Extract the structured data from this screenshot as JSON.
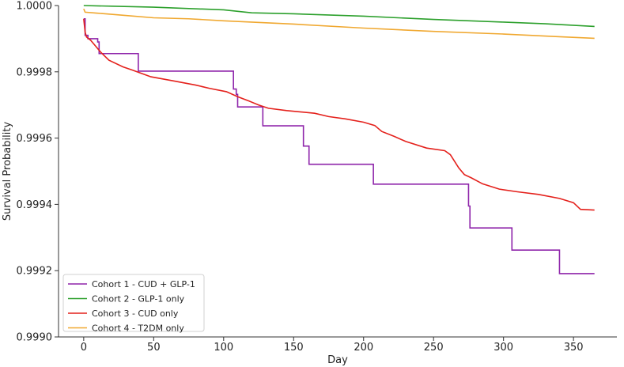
{
  "chart_data": {
    "type": "line",
    "step": true,
    "title": "",
    "xlabel": "Day",
    "ylabel": "Survival Probability",
    "xlim": [
      -18,
      381
    ],
    "ylim": [
      0.999,
      1.0
    ],
    "xticks": [
      0,
      50,
      100,
      150,
      200,
      250,
      300,
      350
    ],
    "yticks": [
      0.999,
      0.9992,
      0.9994,
      0.9996,
      0.9998,
      1.0
    ],
    "ytick_labels": [
      "0.9990",
      "0.9992",
      "0.9994",
      "0.9996",
      "0.9998",
      "1.0000"
    ],
    "grid": false,
    "legend_position": "bottom-left",
    "series": [
      {
        "name": "Cohort 1 - CUD + GLP-1",
        "color": "#8e24aa",
        "points": [
          [
            0,
            0.99996
          ],
          [
            1,
            0.99996
          ],
          [
            1,
            0.99991
          ],
          [
            3,
            0.99991
          ],
          [
            3,
            0.9999
          ],
          [
            10,
            0.9999
          ],
          [
            10,
            0.99989
          ],
          [
            11,
            0.99989
          ],
          [
            11,
            0.999855
          ],
          [
            39,
            0.999855
          ],
          [
            39,
            0.999802
          ],
          [
            107,
            0.999802
          ],
          [
            107,
            0.999748
          ],
          [
            109,
            0.999748
          ],
          [
            109,
            0.999732
          ],
          [
            110,
            0.999732
          ],
          [
            110,
            0.999694
          ],
          [
            128,
            0.999694
          ],
          [
            128,
            0.999637
          ],
          [
            157,
            0.999637
          ],
          [
            157,
            0.999576
          ],
          [
            161,
            0.999576
          ],
          [
            161,
            0.999521
          ],
          [
            207,
            0.999521
          ],
          [
            207,
            0.999461
          ],
          [
            275,
            0.999461
          ],
          [
            275,
            0.999395
          ],
          [
            276,
            0.999395
          ],
          [
            276,
            0.999329
          ],
          [
            306,
            0.999329
          ],
          [
            306,
            0.999262
          ],
          [
            340,
            0.999262
          ],
          [
            340,
            0.999191
          ],
          [
            365,
            0.999191
          ]
        ]
      },
      {
        "name": "Cohort 2 - GLP-1 only",
        "color": "#2ca02c",
        "points": [
          [
            0,
            1.0
          ],
          [
            20,
            0.999998
          ],
          [
            50,
            0.999995
          ],
          [
            100,
            0.999987
          ],
          [
            120,
            0.999978
          ],
          [
            150,
            0.999975
          ],
          [
            200,
            0.999968
          ],
          [
            250,
            0.999958
          ],
          [
            300,
            0.99995
          ],
          [
            330,
            0.999945
          ],
          [
            365,
            0.999937
          ]
        ]
      },
      {
        "name": "Cohort 3 - CUD only",
        "color": "#e4211c",
        "points": [
          [
            0,
            0.99996
          ],
          [
            1,
            0.99992
          ],
          [
            2,
            0.999905
          ],
          [
            5,
            0.999895
          ],
          [
            8,
            0.99988
          ],
          [
            12,
            0.99986
          ],
          [
            18,
            0.999835
          ],
          [
            28,
            0.999815
          ],
          [
            35,
            0.999805
          ],
          [
            48,
            0.999785
          ],
          [
            65,
            0.999772
          ],
          [
            80,
            0.99976
          ],
          [
            90,
            0.99975
          ],
          [
            102,
            0.99974
          ],
          [
            110,
            0.999725
          ],
          [
            118,
            0.999712
          ],
          [
            125,
            0.9997
          ],
          [
            132,
            0.99969
          ],
          [
            145,
            0.999683
          ],
          [
            165,
            0.999675
          ],
          [
            175,
            0.999665
          ],
          [
            187,
            0.999658
          ],
          [
            200,
            0.999648
          ],
          [
            208,
            0.999638
          ],
          [
            213,
            0.99962
          ],
          [
            222,
            0.999605
          ],
          [
            230,
            0.99959
          ],
          [
            245,
            0.99957
          ],
          [
            258,
            0.999562
          ],
          [
            262,
            0.99955
          ],
          [
            265,
            0.99953
          ],
          [
            268,
            0.99951
          ],
          [
            272,
            0.99949
          ],
          [
            277,
            0.99948
          ],
          [
            285,
            0.999462
          ],
          [
            297,
            0.999446
          ],
          [
            310,
            0.999438
          ],
          [
            325,
            0.99943
          ],
          [
            340,
            0.999418
          ],
          [
            350,
            0.999405
          ],
          [
            355,
            0.999385
          ],
          [
            365,
            0.999383
          ]
        ]
      },
      {
        "name": "Cohort 4 - T2DM only",
        "color": "#f0a830",
        "points": [
          [
            0,
            0.99999
          ],
          [
            1,
            0.99998
          ],
          [
            10,
            0.999977
          ],
          [
            30,
            0.99997
          ],
          [
            50,
            0.999963
          ],
          [
            75,
            0.99996
          ],
          [
            100,
            0.999954
          ],
          [
            150,
            0.999944
          ],
          [
            200,
            0.999932
          ],
          [
            250,
            0.999922
          ],
          [
            300,
            0.999914
          ],
          [
            340,
            0.999906
          ],
          [
            365,
            0.999901
          ]
        ]
      }
    ]
  }
}
